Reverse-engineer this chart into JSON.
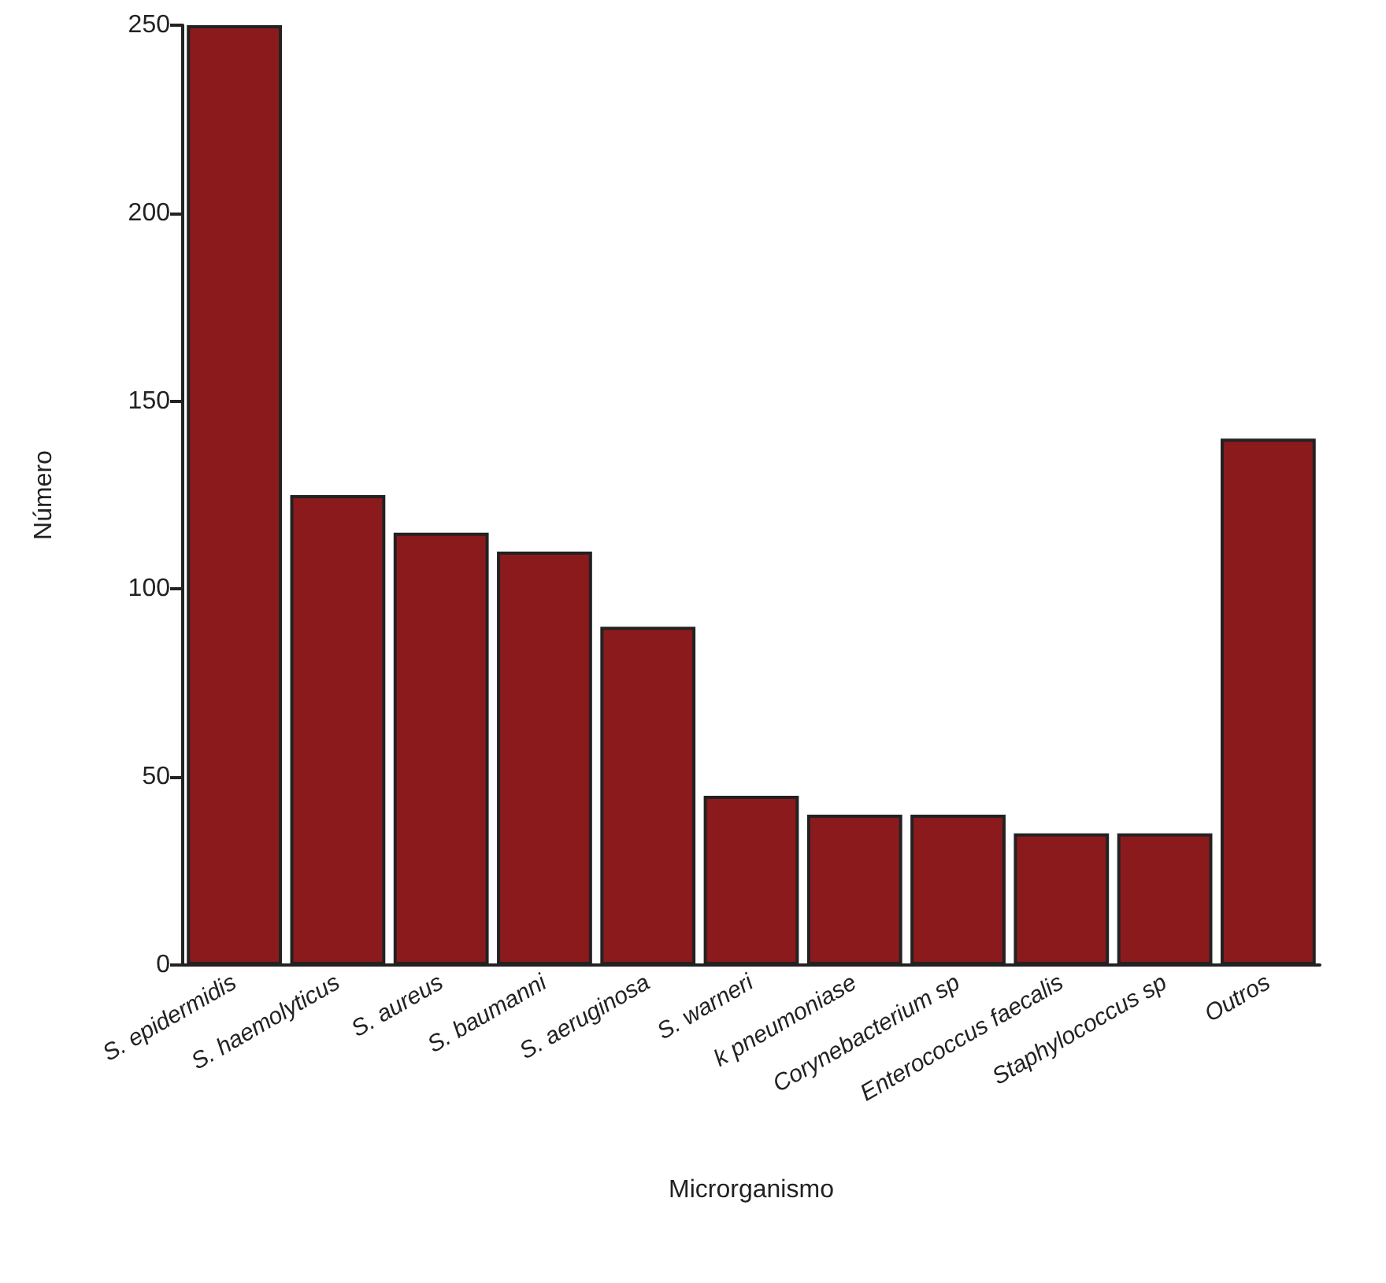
{
  "chart_data": {
    "type": "bar",
    "xlabel": "Microrganismo",
    "ylabel": "Número",
    "categories": [
      "S. epidermidis",
      "S. haemolyticus",
      "S. aureus",
      "S. baumanni",
      "S. aeruginosa",
      "S. warneri",
      "k pneumoniase",
      "Corynebacterium sp",
      "Enterococcus faecalis",
      "Staphylococcus sp",
      "Outros"
    ],
    "values": [
      250,
      125,
      115,
      110,
      90,
      45,
      40,
      40,
      35,
      35,
      140
    ],
    "color": "#8b1a1c",
    "ylim": [
      0,
      250
    ],
    "yticks": [
      0,
      50,
      100,
      150,
      200,
      250
    ],
    "grid": false
  }
}
